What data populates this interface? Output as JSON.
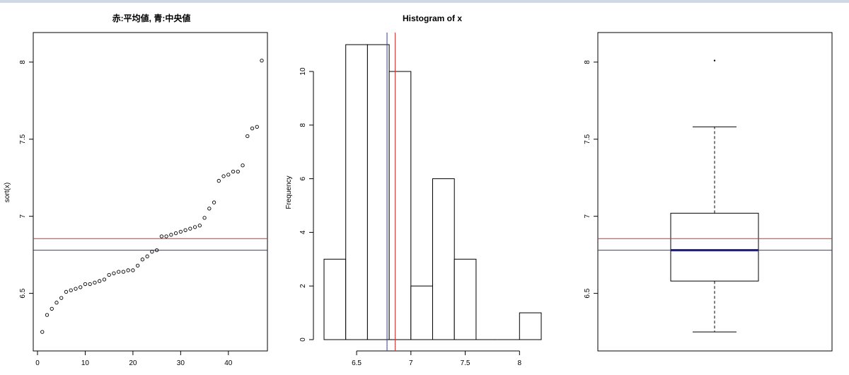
{
  "colors": {
    "mean": "#d03030",
    "median": "#3a3a9a",
    "ink": "#000000",
    "median_bar": "#0a0a50"
  },
  "chart_data": [
    {
      "type": "scatter",
      "title": "赤:平均値, 青:中央値",
      "xlabel": "",
      "ylabel": "sort(x)",
      "xlim": [
        0,
        48
      ],
      "ylim": [
        6.2,
        8.1
      ],
      "xticks": [
        0,
        10,
        20,
        30,
        40
      ],
      "yticks": [
        6.5,
        7.0,
        7.5,
        8.0
      ],
      "x": [
        1,
        2,
        3,
        4,
        5,
        6,
        7,
        8,
        9,
        10,
        11,
        12,
        13,
        14,
        15,
        16,
        17,
        18,
        19,
        20,
        21,
        22,
        23,
        24,
        25,
        26,
        27,
        28,
        29,
        30,
        31,
        32,
        33,
        34,
        35,
        36,
        37,
        38,
        39,
        40,
        41,
        42,
        43,
        44,
        45,
        46,
        47
      ],
      "y": [
        6.25,
        6.36,
        6.4,
        6.44,
        6.47,
        6.51,
        6.52,
        6.53,
        6.54,
        6.56,
        6.56,
        6.57,
        6.58,
        6.59,
        6.62,
        6.63,
        6.64,
        6.64,
        6.65,
        6.65,
        6.68,
        6.72,
        6.74,
        6.77,
        6.78,
        6.87,
        6.87,
        6.88,
        6.89,
        6.9,
        6.91,
        6.92,
        6.93,
        6.94,
        6.99,
        7.05,
        7.09,
        7.23,
        7.26,
        7.27,
        7.29,
        7.29,
        7.33,
        7.52,
        7.57,
        7.58,
        8.01
      ],
      "hlines": [
        {
          "name": "mean",
          "value": 6.855
        },
        {
          "name": "median",
          "value": 6.78
        }
      ],
      "grid": false
    },
    {
      "type": "bar",
      "title": "Histogram of x",
      "xlabel": "",
      "ylabel": "Frequency",
      "xlim": [
        6.2,
        8.2
      ],
      "ylim": [
        0,
        11.5
      ],
      "xticks": [
        6.5,
        7.0,
        7.5,
        8.0
      ],
      "yticks": [
        0,
        2,
        4,
        6,
        8,
        10
      ],
      "bin_edges": [
        6.2,
        6.4,
        6.6,
        6.8,
        7.0,
        7.2,
        7.4,
        7.6,
        7.8,
        8.0,
        8.2
      ],
      "values": [
        3,
        11,
        11,
        10,
        2,
        6,
        3,
        0,
        0,
        1
      ],
      "vlines": [
        {
          "name": "mean",
          "value": 6.855
        },
        {
          "name": "median",
          "value": 6.78
        }
      ],
      "grid": false
    },
    {
      "type": "box",
      "title": "",
      "xlabel": "",
      "ylabel": "",
      "ylim": [
        6.2,
        8.1
      ],
      "yticks": [
        6.5,
        7.0,
        7.5,
        8.0
      ],
      "whisker_low": 6.25,
      "q1": 6.58,
      "median": 6.78,
      "q3": 7.02,
      "whisker_high": 7.58,
      "outliers": [
        8.01
      ],
      "hlines": [
        {
          "name": "mean",
          "value": 6.855
        },
        {
          "name": "median",
          "value": 6.78
        }
      ],
      "grid": false
    }
  ]
}
